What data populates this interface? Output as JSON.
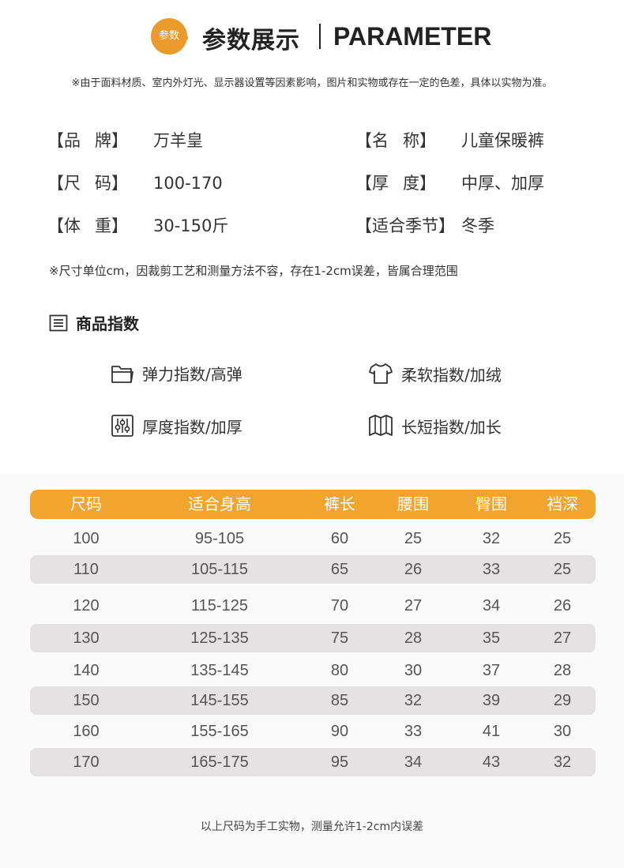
{
  "header": {
    "badge": "参数",
    "title_cn": "参数展示",
    "title_en": "PARAMETER",
    "badge_color": "#ea9b2b"
  },
  "disclaimer": "※由于面料材质、室内外灯光、显示器设置等因素影响，图片和实物或存在一定的色差，具体以实物为准。",
  "params": {
    "brand": {
      "label_a": "品",
      "label_b": "牌",
      "value": "万羊皇"
    },
    "name": {
      "label_a": "名",
      "label_b": "称",
      "value": "儿童保暖裤"
    },
    "size": {
      "label_a": "尺",
      "label_b": "码",
      "value": "100-170"
    },
    "thickness": {
      "label_a": "厚",
      "label_b": "度",
      "value": "中厚、加厚"
    },
    "weight": {
      "label_a": "体",
      "label_b": "重",
      "value": "30-150斤"
    },
    "season": {
      "label": "适合季节",
      "value": "冬季"
    }
  },
  "size_note": "※尺寸单位cm，因裁剪工艺和测量方法不容，存在1-2cm误差，皆属合理范围",
  "index_section": {
    "title": "商品指数",
    "items": {
      "elastic": "弹力指数/高弹",
      "soft": "柔软指数/加绒",
      "thick": "厚度指数/加厚",
      "length": "长短指数/加长"
    }
  },
  "table": {
    "header_color": "#f2a52d",
    "headers": [
      "尺码",
      "适合身高",
      "裤长",
      "腰围",
      "臀围",
      "裆深"
    ],
    "rows": [
      [
        "100",
        "95-105",
        "60",
        "25",
        "32",
        "25"
      ],
      [
        "110",
        "105-115",
        "65",
        "26",
        "33",
        "25"
      ],
      [
        "120",
        "115-125",
        "70",
        "27",
        "34",
        "26"
      ],
      [
        "130",
        "125-135",
        "75",
        "28",
        "35",
        "27"
      ],
      [
        "140",
        "135-145",
        "80",
        "30",
        "37",
        "28"
      ],
      [
        "150",
        "145-155",
        "85",
        "32",
        "39",
        "29"
      ],
      [
        "160",
        "155-165",
        "90",
        "33",
        "41",
        "30"
      ],
      [
        "170",
        "165-175",
        "95",
        "34",
        "43",
        "32"
      ]
    ]
  },
  "footer": "以上尺码为手工实物，测量允许1-2cm内误差"
}
